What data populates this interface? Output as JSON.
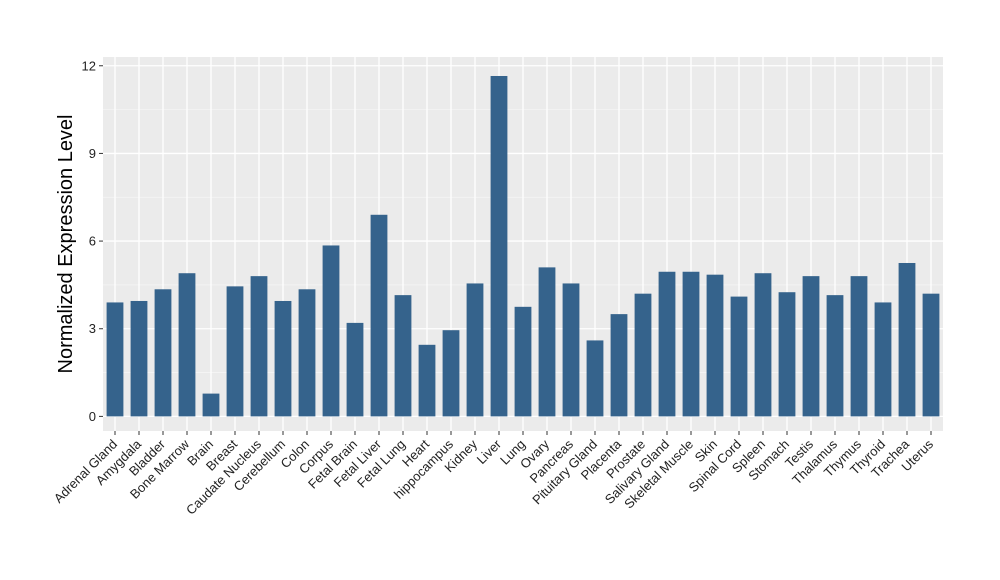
{
  "chart_data": {
    "type": "bar",
    "title": "",
    "xlabel": "",
    "ylabel": "Normalized Expression Level",
    "ylim": [
      -0.5,
      12.3
    ],
    "yticks": [
      0,
      3,
      6,
      9,
      12
    ],
    "grid": true,
    "legend": "none",
    "categories": [
      "Adrenal Gland",
      "Amygdala",
      "Bladder",
      "Bone Marrow",
      "Brain",
      "Breast",
      "Caudate Nucleus",
      "Cerebellum",
      "Colon",
      "Corpus",
      "Fetal Brain",
      "Fetal Liver",
      "Fetal Lung",
      "Heart",
      "hippocampus",
      "Kidney",
      "Liver",
      "Lung",
      "Ovary",
      "Pancreas",
      "Pituitary Gland",
      "Placenta",
      "Prostate",
      "Salivary Gland",
      "Skeletal Muscle",
      "Skin",
      "Spinal Cord",
      "Spleen",
      "Stomach",
      "Testis",
      "Thalamus",
      "Thymus",
      "Thyroid",
      "Trachea",
      "Uterus"
    ],
    "values": [
      3.9,
      3.95,
      4.35,
      4.9,
      0.78,
      4.45,
      4.8,
      3.95,
      4.35,
      5.85,
      3.2,
      6.9,
      4.15,
      2.45,
      2.95,
      4.55,
      11.65,
      3.75,
      5.1,
      4.55,
      2.6,
      3.5,
      4.2,
      4.95,
      4.95,
      4.85,
      4.1,
      4.9,
      4.25,
      4.8,
      4.15,
      4.8,
      3.9,
      5.25,
      4.2
    ],
    "colors": {
      "bar": "#35638c",
      "panel": "#ebebeb",
      "grid_major": "#ffffff",
      "grid_minor": "#f5f5f5"
    }
  }
}
